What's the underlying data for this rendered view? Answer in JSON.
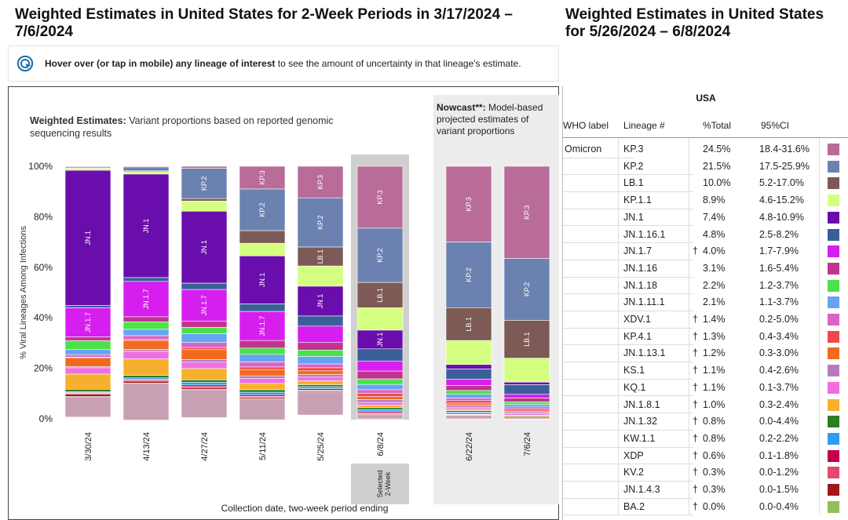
{
  "header": {
    "left_title": "Weighted Estimates in United States for 2-Week Periods in 3/17/2024 – 7/6/2024",
    "right_title": "Weighted Estimates in United States for 5/26/2024 – 6/8/2024"
  },
  "hover_note": {
    "bold_text": "Hover over (or tap in mobile) any lineage of interest",
    "rest_text": " to see the amount of uncertainty in that lineage's estimate."
  },
  "chart_data": {
    "type": "bar",
    "stacked": true,
    "title_bold": "Weighted Estimates:",
    "title_rest": " Variant proportions based on reported genomic sequencing results",
    "nowcast_bold": "Nowcast**:",
    "nowcast_rest": " Model-based projected estimates of variant proportions",
    "ylabel": "% Viral Lineages Among Infections",
    "xlabel": "Collection date, two-week period ending",
    "y_ticks": [
      "0%",
      "20%",
      "40%",
      "60%",
      "80%",
      "100%"
    ],
    "ylim": [
      0,
      100
    ],
    "selected_label": "Selected 2-Week",
    "categories": [
      "3/30/24",
      "4/13/24",
      "4/27/24",
      "5/11/24",
      "5/25/24",
      "6/8/24",
      "6/22/24",
      "7/6/24"
    ],
    "nowcast_categories": [
      "6/22/24",
      "7/6/24"
    ],
    "selected_category": "6/8/24",
    "colors": {
      "JN.1": "#6a0dad",
      "KP.3": "#b86c97",
      "KP.2": "#6b82b0",
      "LB.1": "#7d5a55",
      "KP.1.1": "#d4ff80",
      "JN.1.7": "#d61fef",
      "JN.1.16.1": "#3a5f98",
      "JN.1.16": "#c2338e",
      "JN.1.18": "#4be14b",
      "JN.1.11.1": "#66a3f0",
      "XDV.1": "#d666c6",
      "KP.4.1": "#f04848",
      "JN.1.13.1": "#f26a1f",
      "KS.1": "#b87abf",
      "KQ.1": "#ee70e0",
      "JN.1.8.1": "#f7b02e",
      "JN.1.32": "#2e7d24",
      "KW.1.1": "#2e9cf2",
      "XDP": "#c2004f",
      "KV.2": "#e5486d",
      "JN.1.4.3": "#a01818",
      "BA.2": "#8fbf5a",
      "Other": "#c8a0b4"
    },
    "series": [
      {
        "name": "KP.3",
        "values": [
          0.3,
          0.3,
          0.8,
          9.0,
          12.5,
          24.5,
          30.0,
          36.5
        ]
      },
      {
        "name": "KP.2",
        "values": [
          0.4,
          1.5,
          12.0,
          16.5,
          19.5,
          21.5,
          26.0,
          24.5
        ]
      },
      {
        "name": "LB.1",
        "values": [
          0.1,
          0.3,
          1.0,
          5.0,
          7.5,
          10.0,
          13.0,
          15.0
        ]
      },
      {
        "name": "KP.1.1",
        "values": [
          0.8,
          1.0,
          4.0,
          5.0,
          8.0,
          8.9,
          9.5,
          9.5
        ]
      },
      {
        "name": "JN.1",
        "values": [
          53.5,
          41.0,
          28.5,
          19.0,
          11.8,
          7.4,
          1.8,
          1.0
        ]
      },
      {
        "name": "JN.1.16.1",
        "values": [
          1.0,
          1.5,
          2.5,
          3.0,
          4.0,
          4.8,
          4.0,
          3.8
        ]
      },
      {
        "name": "JN.1.7",
        "values": [
          11.5,
          14.0,
          12.5,
          11.5,
          6.5,
          4.0,
          2.5,
          1.5
        ]
      },
      {
        "name": "JN.1.16",
        "values": [
          1.5,
          2.0,
          2.5,
          3.0,
          3.0,
          3.1,
          2.0,
          1.5
        ]
      },
      {
        "name": "JN.1.18",
        "values": [
          3.5,
          3.0,
          2.5,
          2.5,
          2.5,
          2.2,
          1.5,
          1.0
        ]
      },
      {
        "name": "JN.1.11.1",
        "values": [
          2.0,
          2.5,
          3.5,
          3.0,
          3.0,
          2.1,
          1.5,
          1.0
        ]
      },
      {
        "name": "XDV.1",
        "values": [
          1.0,
          1.5,
          2.0,
          2.0,
          1.5,
          1.4,
          1.0,
          0.8
        ]
      },
      {
        "name": "KP.4.1",
        "values": [
          0.2,
          0.4,
          0.8,
          1.0,
          1.2,
          1.3,
          1.0,
          0.8
        ]
      },
      {
        "name": "JN.1.13.1",
        "values": [
          3.5,
          3.5,
          4.0,
          2.5,
          1.5,
          1.2,
          0.8,
          0.5
        ]
      },
      {
        "name": "KS.1",
        "values": [
          0.5,
          0.8,
          1.0,
          1.0,
          1.0,
          1.1,
          0.8,
          0.6
        ]
      },
      {
        "name": "KQ.1",
        "values": [
          2.5,
          3.0,
          2.5,
          2.0,
          1.5,
          1.1,
          0.8,
          0.6
        ]
      },
      {
        "name": "JN.1.8.1",
        "values": [
          6.0,
          6.5,
          4.5,
          2.5,
          1.5,
          1.0,
          0.6,
          0.4
        ]
      },
      {
        "name": "JN.1.32",
        "values": [
          1.0,
          1.0,
          1.0,
          1.0,
          0.8,
          0.8,
          0.5,
          0.4
        ]
      },
      {
        "name": "KW.1.1",
        "values": [
          0.3,
          0.5,
          1.0,
          1.0,
          0.8,
          0.8,
          0.5,
          0.4
        ]
      },
      {
        "name": "XDP",
        "values": [
          0.3,
          0.4,
          0.6,
          0.6,
          0.6,
          0.6,
          0.4,
          0.3
        ]
      },
      {
        "name": "KV.2",
        "values": [
          0.3,
          0.4,
          0.5,
          0.4,
          0.3,
          0.3,
          0.2,
          0.2
        ]
      },
      {
        "name": "JN.1.4.3",
        "values": [
          1.0,
          0.8,
          0.7,
          0.5,
          0.4,
          0.3,
          0.2,
          0.2
        ]
      },
      {
        "name": "BA.2",
        "values": [
          0.1,
          0.1,
          0.1,
          0.0,
          0.0,
          0.0,
          0.0,
          0.0
        ]
      },
      {
        "name": "Other",
        "values": [
          8.0,
          14.5,
          11.0,
          8.4,
          9.1,
          1.6,
          1.4,
          0.0
        ]
      }
    ],
    "bar_labels": [
      {
        "category": "3/30/24",
        "series": "JN.1",
        "text": "JN.1"
      },
      {
        "category": "3/30/24",
        "series": "JN.1.7",
        "text": "JN.1.7"
      },
      {
        "category": "4/13/24",
        "series": "JN.1",
        "text": "JN.1"
      },
      {
        "category": "4/13/24",
        "series": "JN.1.7",
        "text": "JN.1.7"
      },
      {
        "category": "4/27/24",
        "series": "JN.1",
        "text": "JN.1"
      },
      {
        "category": "4/27/24",
        "series": "KP.2",
        "text": "KP.2"
      },
      {
        "category": "4/27/24",
        "series": "JN.1.7",
        "text": "JN.1.7"
      },
      {
        "category": "5/11/24",
        "series": "JN.1",
        "text": "JN.1"
      },
      {
        "category": "5/11/24",
        "series": "KP.3",
        "text": "KP.3"
      },
      {
        "category": "5/11/24",
        "series": "KP.2",
        "text": "KP.2"
      },
      {
        "category": "5/11/24",
        "series": "JN.1.7",
        "text": "JN.1.7"
      },
      {
        "category": "5/25/24",
        "series": "JN.1",
        "text": "JN.1"
      },
      {
        "category": "5/25/24",
        "series": "KP.3",
        "text": "KP.3"
      },
      {
        "category": "5/25/24",
        "series": "KP.2",
        "text": "KP.2"
      },
      {
        "category": "5/25/24",
        "series": "LB.1",
        "text": "LB.1"
      },
      {
        "category": "6/8/24",
        "series": "JN.1",
        "text": "JN.1"
      },
      {
        "category": "6/8/24",
        "series": "KP.3",
        "text": "KP.3"
      },
      {
        "category": "6/8/24",
        "series": "KP.2",
        "text": "KP.2"
      },
      {
        "category": "6/8/24",
        "series": "LB.1",
        "text": "LB.1"
      },
      {
        "category": "6/22/24",
        "series": "KP.3",
        "text": "KP.3"
      },
      {
        "category": "6/22/24",
        "series": "KP.2",
        "text": "KP.2"
      },
      {
        "category": "6/22/24",
        "series": "LB.1",
        "text": "LB.1"
      },
      {
        "category": "7/6/24",
        "series": "KP.3",
        "text": "KP.3"
      },
      {
        "category": "7/6/24",
        "series": "KP.2",
        "text": "KP.2"
      },
      {
        "category": "7/6/24",
        "series": "LB.1",
        "text": "LB.1"
      }
    ],
    "legend_placement": "right"
  },
  "table": {
    "title": "USA",
    "headers": {
      "who": "WHO label",
      "lineage": "Lineage #",
      "pct": "%Total",
      "ci": "95%CI"
    },
    "rows": [
      {
        "who": "Omicron",
        "lineage": "KP.3",
        "dagger": "",
        "pct": "24.5%",
        "ci": "18.4-31.6%"
      },
      {
        "who": "",
        "lineage": "KP.2",
        "dagger": "",
        "pct": "21.5%",
        "ci": "17.5-25.9%"
      },
      {
        "who": "",
        "lineage": "LB.1",
        "dagger": "",
        "pct": "10.0%",
        "ci": "5.2-17.0%"
      },
      {
        "who": "",
        "lineage": "KP.1.1",
        "dagger": "",
        "pct": "8.9%",
        "ci": "4.6-15.2%"
      },
      {
        "who": "",
        "lineage": "JN.1",
        "dagger": "",
        "pct": "7.4%",
        "ci": "4.8-10.9%"
      },
      {
        "who": "",
        "lineage": "JN.1.16.1",
        "dagger": "",
        "pct": "4.8%",
        "ci": "2.5-8.2%"
      },
      {
        "who": "",
        "lineage": "JN.1.7",
        "dagger": "†",
        "pct": "4.0%",
        "ci": "1.7-7.9%"
      },
      {
        "who": "",
        "lineage": "JN.1.16",
        "dagger": "",
        "pct": "3.1%",
        "ci": "1.6-5.4%"
      },
      {
        "who": "",
        "lineage": "JN.1.18",
        "dagger": "",
        "pct": "2.2%",
        "ci": "1.2-3.7%"
      },
      {
        "who": "",
        "lineage": "JN.1.11.1",
        "dagger": "",
        "pct": "2.1%",
        "ci": "1.1-3.7%"
      },
      {
        "who": "",
        "lineage": "XDV.1",
        "dagger": "†",
        "pct": "1.4%",
        "ci": "0.2-5.0%"
      },
      {
        "who": "",
        "lineage": "KP.4.1",
        "dagger": "†",
        "pct": "1.3%",
        "ci": "0.4-3.4%"
      },
      {
        "who": "",
        "lineage": "JN.1.13.1",
        "dagger": "†",
        "pct": "1.2%",
        "ci": "0.3-3.0%"
      },
      {
        "who": "",
        "lineage": "KS.1",
        "dagger": "†",
        "pct": "1.1%",
        "ci": "0.4-2.6%"
      },
      {
        "who": "",
        "lineage": "KQ.1",
        "dagger": "†",
        "pct": "1.1%",
        "ci": "0.1-3.7%"
      },
      {
        "who": "",
        "lineage": "JN.1.8.1",
        "dagger": "†",
        "pct": "1.0%",
        "ci": "0.3-2.4%"
      },
      {
        "who": "",
        "lineage": "JN.1.32",
        "dagger": "†",
        "pct": "0.8%",
        "ci": "0.0-4.4%"
      },
      {
        "who": "",
        "lineage": "KW.1.1",
        "dagger": "†",
        "pct": "0.8%",
        "ci": "0.2-2.2%"
      },
      {
        "who": "",
        "lineage": "XDP",
        "dagger": "†",
        "pct": "0.6%",
        "ci": "0.1-1.8%"
      },
      {
        "who": "",
        "lineage": "KV.2",
        "dagger": "†",
        "pct": "0.3%",
        "ci": "0.0-1.2%"
      },
      {
        "who": "",
        "lineage": "JN.1.4.3",
        "dagger": "†",
        "pct": "0.3%",
        "ci": "0.0-1.5%"
      },
      {
        "who": "",
        "lineage": "BA.2",
        "dagger": "†",
        "pct": "0.0%",
        "ci": "0.0-0.4%"
      }
    ]
  }
}
